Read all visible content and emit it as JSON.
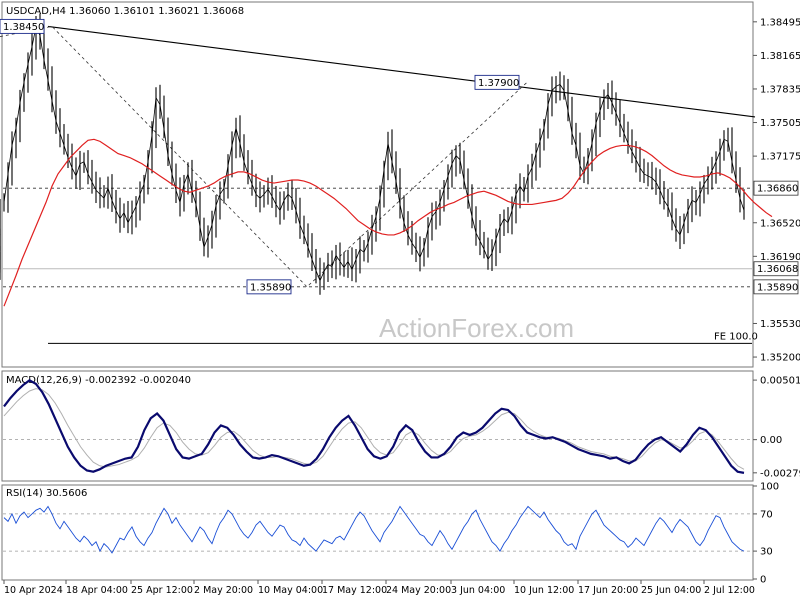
{
  "chart_data": {
    "type": "line",
    "title": "USDCAD,H4  1.36060 1.36101 1.36021 1.36068",
    "watermark": "ActionForex.com",
    "price_panel": {
      "ylim": [
        1.35112,
        1.3868
      ],
      "y_ticks": [
        "1.38495",
        "1.38165",
        "1.37835",
        "1.37505",
        "1.37175",
        "1.36520",
        "1.36190",
        "1.35530",
        "1.35200"
      ],
      "current_price": "1.36068",
      "level_labels": [
        "1.36860",
        "1.35890"
      ],
      "levels": [
        1.3686,
        1.3589
      ],
      "fe_label": "FE 100.0",
      "fe_level": 1.35335,
      "swing_labels": [
        "1.38450",
        "1.35890",
        "1.37900"
      ],
      "trendline": [
        {
          "bar": 48,
          "value": 1.3845
        },
        {
          "bar": 755,
          "value": 1.3756
        }
      ],
      "swing_path": [
        {
          "bar": 0,
          "value": 1.3835
        },
        {
          "bar": 52,
          "value": 1.3845
        },
        {
          "bar": 307,
          "value": 1.3589
        },
        {
          "bar": 527,
          "value": 1.379
        }
      ],
      "close": [
        1.3672,
        1.37,
        1.3728,
        1.3745,
        1.377,
        1.379,
        1.3808,
        1.3825,
        1.3845,
        1.3836,
        1.3812,
        1.3792,
        1.3772,
        1.3752,
        1.374,
        1.3728,
        1.3716,
        1.3706,
        1.3698,
        1.371,
        1.3712,
        1.37,
        1.3692,
        1.3684,
        1.368,
        1.3676,
        1.3686,
        1.3674,
        1.3664,
        1.3656,
        1.3662,
        1.3652,
        1.366,
        1.3668,
        1.368,
        1.369,
        1.3712,
        1.3738,
        1.3775,
        1.3768,
        1.3744,
        1.3718,
        1.37,
        1.3684,
        1.3672,
        1.369,
        1.37,
        1.3683,
        1.367,
        1.3648,
        1.3628,
        1.3638,
        1.365,
        1.3669,
        1.368,
        1.3686,
        1.3708,
        1.3728,
        1.3745,
        1.373,
        1.3712,
        1.37,
        1.369,
        1.368,
        1.3676,
        1.368,
        1.3685,
        1.3678,
        1.367,
        1.3664,
        1.3674,
        1.368,
        1.3676,
        1.3664,
        1.365,
        1.364,
        1.3628,
        1.3616,
        1.3605,
        1.3595,
        1.3604,
        1.3611,
        1.3609,
        1.362,
        1.3614,
        1.3608,
        1.3614,
        1.3606,
        1.3616,
        1.3626,
        1.3623,
        1.3632,
        1.3646,
        1.3658,
        1.3676,
        1.3704,
        1.373,
        1.3712,
        1.3693,
        1.367,
        1.3652,
        1.364,
        1.3632,
        1.3626,
        1.3618,
        1.3628,
        1.3646,
        1.3658,
        1.3663,
        1.3672,
        1.3685,
        1.3698,
        1.371,
        1.3718,
        1.3714,
        1.3694,
        1.3676,
        1.3658,
        1.3642,
        1.3634,
        1.3626,
        1.3616,
        1.3622,
        1.3636,
        1.3648,
        1.3656,
        1.3652,
        1.3664,
        1.368,
        1.3688,
        1.3682,
        1.3698,
        1.3706,
        1.372,
        1.3732,
        1.3745,
        1.3768,
        1.3782,
        1.3786,
        1.3788,
        1.3782,
        1.3762,
        1.374,
        1.3728,
        1.3708,
        1.37,
        1.3714,
        1.373,
        1.375,
        1.3762,
        1.3774,
        1.3778,
        1.377,
        1.376,
        1.375,
        1.374,
        1.373,
        1.3722,
        1.3714,
        1.3706,
        1.37,
        1.3698,
        1.3696,
        1.3692,
        1.3684,
        1.3674,
        1.3668,
        1.3656,
        1.3646,
        1.364,
        1.3652,
        1.3664,
        1.3674,
        1.3672,
        1.368,
        1.369,
        1.3696,
        1.3703,
        1.3712,
        1.3722,
        1.3734,
        1.3732,
        1.3712,
        1.3694,
        1.3676,
        1.3664,
        1.365,
        1.3636,
        1.3628,
        1.362,
        1.3612,
        1.3606
      ],
      "close_x": [
        4,
        8,
        12,
        16,
        20,
        24,
        28,
        32,
        36,
        40,
        44,
        48,
        52,
        56,
        60,
        64,
        68,
        72,
        76,
        80,
        84,
        88,
        92,
        96,
        100,
        104,
        108,
        112,
        116,
        120,
        124,
        128,
        132,
        136,
        140,
        144,
        148,
        152,
        156,
        160,
        164,
        168,
        172,
        176,
        180,
        184,
        188,
        192,
        196,
        200,
        204,
        208,
        212,
        216,
        220,
        224,
        228,
        232,
        236,
        240,
        244,
        248,
        252,
        256,
        260,
        264,
        268,
        272,
        276,
        280,
        284,
        288,
        292,
        296,
        300,
        304,
        308,
        312,
        316,
        320,
        324,
        328,
        332,
        336,
        340,
        344,
        348,
        352,
        356,
        360,
        364,
        368,
        372,
        376,
        380,
        384,
        388,
        392,
        396,
        400,
        404,
        408,
        412,
        416,
        420,
        424,
        428,
        432,
        436,
        440,
        444,
        448,
        452,
        456,
        460,
        464,
        468,
        472,
        476,
        480,
        484,
        488,
        492,
        496,
        500,
        504,
        508,
        512,
        516,
        520,
        524,
        528,
        532,
        536,
        540,
        544,
        548,
        552,
        556,
        560,
        564,
        568,
        572,
        576,
        580,
        584,
        588,
        592,
        596,
        600,
        604,
        608,
        612,
        616,
        620,
        624,
        628,
        632,
        636,
        640,
        644,
        648,
        652,
        656,
        660,
        664,
        668,
        672,
        676,
        680,
        684,
        688,
        692,
        696,
        700,
        704,
        708,
        712,
        716,
        720,
        724,
        728,
        732,
        736,
        740,
        744
      ],
      "ma": [
        1.357,
        1.3585,
        1.36,
        1.3616,
        1.363,
        1.3644,
        1.3658,
        1.3672,
        1.3688,
        1.37,
        1.3708,
        1.3716,
        1.3722,
        1.3728,
        1.3733,
        1.3734,
        1.3732,
        1.3728,
        1.3724,
        1.372,
        1.3718,
        1.3716,
        1.3713,
        1.371,
        1.3706,
        1.3702,
        1.3698,
        1.3694,
        1.369,
        1.3686,
        1.3683,
        1.3682,
        1.3684,
        1.3686,
        1.3688,
        1.3691,
        1.3695,
        1.3698,
        1.37,
        1.3702,
        1.3702,
        1.37,
        1.3697,
        1.3694,
        1.3692,
        1.3691,
        1.3692,
        1.3693,
        1.3694,
        1.3694,
        1.3693,
        1.3691,
        1.3688,
        1.3684,
        1.368,
        1.3676,
        1.3671,
        1.3666,
        1.366,
        1.3654,
        1.365,
        1.3646,
        1.3643,
        1.3641,
        1.364,
        1.364,
        1.3642,
        1.3645,
        1.3649,
        1.3654,
        1.3658,
        1.3662,
        1.3665,
        1.3667,
        1.367,
        1.3672,
        1.3675,
        1.3678,
        1.368,
        1.3682,
        1.3683,
        1.3681,
        1.3679,
        1.3676,
        1.3673,
        1.3671,
        1.367,
        1.367,
        1.367,
        1.3671,
        1.3672,
        1.3673,
        1.3674,
        1.3676,
        1.3681,
        1.3688,
        1.3697,
        1.3705,
        1.3712,
        1.3718,
        1.3722,
        1.3725,
        1.3727,
        1.3728,
        1.3728,
        1.3727,
        1.3725,
        1.3722,
        1.3718,
        1.3713,
        1.3708,
        1.3704,
        1.3701,
        1.3699,
        1.3698,
        1.3697,
        1.3697,
        1.3698,
        1.37,
        1.3701,
        1.3699,
        1.3696,
        1.3691,
        1.3685,
        1.3678,
        1.3672,
        1.3667,
        1.3662,
        1.3658
      ],
      "ma_x": [
        4,
        10,
        16,
        22,
        28,
        34,
        40,
        46,
        52,
        58,
        64,
        70,
        76,
        82,
        88,
        94,
        100,
        106,
        112,
        118,
        124,
        130,
        136,
        142,
        148,
        154,
        160,
        166,
        172,
        178,
        184,
        190,
        196,
        202,
        208,
        214,
        220,
        226,
        232,
        238,
        244,
        250,
        256,
        262,
        268,
        274,
        280,
        286,
        292,
        298,
        304,
        310,
        316,
        322,
        328,
        334,
        340,
        346,
        352,
        358,
        364,
        370,
        376,
        382,
        388,
        394,
        400,
        406,
        412,
        418,
        424,
        430,
        436,
        442,
        448,
        454,
        460,
        466,
        472,
        478,
        484,
        490,
        496,
        502,
        508,
        514,
        520,
        526,
        532,
        538,
        544,
        550,
        556,
        562,
        568,
        574,
        580,
        586,
        592,
        598,
        604,
        610,
        616,
        622,
        628,
        634,
        640,
        646,
        652,
        658,
        664,
        670,
        676,
        682,
        688,
        694,
        700,
        706,
        712,
        718,
        724,
        730,
        736,
        742,
        748,
        754,
        760,
        766,
        772
      ]
    },
    "macd_panel": {
      "label": "MACD(12,26,9) -0.002392 -0.002040",
      "ylim": [
        -0.0034,
        0.0057
      ],
      "y_ticks": [
        "0.005018",
        "0.00",
        "-0.002795"
      ],
      "macd": [
        0.0028,
        0.0035,
        0.0041,
        0.0046,
        0.005,
        0.0047,
        0.004,
        0.003,
        0.0018,
        0.0006,
        -0.0006,
        -0.0015,
        -0.0022,
        -0.0026,
        -0.0027,
        -0.0025,
        -0.0022,
        -0.002,
        -0.0018,
        -0.0016,
        -0.0015,
        -0.0006,
        0.0008,
        0.0018,
        0.0022,
        0.0016,
        0.0004,
        -0.0008,
        -0.0015,
        -0.0016,
        -0.0014,
        -0.0012,
        -0.0004,
        0.0006,
        0.0012,
        0.001,
        0.0004,
        -0.0004,
        -0.001,
        -0.0015,
        -0.0016,
        -0.0015,
        -0.0013,
        -0.0014,
        -0.0016,
        -0.0018,
        -0.002,
        -0.0022,
        -0.0021,
        -0.0016,
        -0.0008,
        0.0002,
        0.001,
        0.0016,
        0.002,
        0.0012,
        0.0002,
        -0.0008,
        -0.0014,
        -0.0016,
        -0.0014,
        -0.0006,
        0.0006,
        0.0012,
        0.0008,
        -0.0002,
        -0.001,
        -0.0015,
        -0.0015,
        -0.0012,
        -0.0006,
        0.0002,
        0.0006,
        0.0004,
        0.0006,
        0.001,
        0.0016,
        0.0022,
        0.0026,
        0.0025,
        0.002,
        0.0012,
        0.0006,
        0.0004,
        0.0002,
        0.0001,
        0.0002,
        0.0,
        -0.0002,
        -0.0005,
        -0.0008,
        -0.001,
        -0.0012,
        -0.0013,
        -0.0014,
        -0.0016,
        -0.0015,
        -0.0018,
        -0.002,
        -0.0017,
        -0.001,
        -0.0004,
        0.0,
        0.0002,
        -0.0002,
        -0.0006,
        -0.001,
        -0.0004,
        0.0004,
        0.001,
        0.0008,
        0.0002,
        -0.0006,
        -0.0014,
        -0.0022,
        -0.0027,
        -0.0028
      ],
      "signal": [
        0.002,
        0.0026,
        0.0032,
        0.0037,
        0.0041,
        0.0043,
        0.0042,
        0.0038,
        0.0031,
        0.0022,
        0.0012,
        0.0003,
        -0.0006,
        -0.0013,
        -0.0019,
        -0.0022,
        -0.0023,
        -0.0022,
        -0.0021,
        -0.0019,
        -0.0017,
        -0.0014,
        -0.0007,
        0.0002,
        0.001,
        0.0014,
        0.0012,
        0.0006,
        -0.0002,
        -0.0008,
        -0.0012,
        -0.0013,
        -0.0011,
        -0.0005,
        0.0002,
        0.0006,
        0.0007,
        0.0003,
        -0.0003,
        -0.0009,
        -0.0013,
        -0.0015,
        -0.0015,
        -0.0014,
        -0.0015,
        -0.0016,
        -0.0018,
        -0.002,
        -0.0021,
        -0.0019,
        -0.0014,
        -0.0006,
        0.0002,
        0.0009,
        0.0014,
        0.0015,
        0.001,
        0.0002,
        -0.0006,
        -0.0011,
        -0.0013,
        -0.0011,
        -0.0004,
        0.0004,
        0.0007,
        0.0004,
        -0.0003,
        -0.0009,
        -0.0013,
        -0.0013,
        -0.001,
        -0.0004,
        0.0001,
        0.0003,
        0.0004,
        0.0007,
        0.0011,
        0.0016,
        0.0021,
        0.0023,
        0.0022,
        0.0017,
        0.0011,
        0.0007,
        0.0004,
        0.0002,
        0.0002,
        0.0001,
        -0.0001,
        -0.0003,
        -0.0006,
        -0.0008,
        -0.001,
        -0.0011,
        -0.0012,
        -0.0014,
        -0.0015,
        -0.0016,
        -0.0018,
        -0.0018,
        -0.0014,
        -0.0008,
        -0.0003,
        0.0,
        -0.0001,
        -0.0004,
        -0.0007,
        -0.0006,
        -0.0001,
        0.0005,
        0.0007,
        0.0004,
        -0.0002,
        -0.0009,
        -0.0016,
        -0.0022,
        -0.0025
      ]
    },
    "rsi_panel": {
      "label": "RSI(14) 30.5606",
      "ylim": [
        0,
        100
      ],
      "y_ticks": [
        "100",
        "70",
        "30",
        "0"
      ],
      "levels": [
        70,
        30
      ],
      "rsi": [
        66,
        62,
        70,
        60,
        68,
        72,
        66,
        70,
        74,
        76,
        72,
        78,
        70,
        60,
        54,
        62,
        56,
        50,
        44,
        40,
        46,
        42,
        36,
        40,
        30,
        38,
        34,
        28,
        36,
        44,
        42,
        50,
        56,
        46,
        40,
        36,
        44,
        50,
        60,
        68,
        76,
        70,
        60,
        66,
        58,
        52,
        46,
        40,
        48,
        56,
        52,
        44,
        38,
        50,
        60,
        66,
        74,
        70,
        62,
        54,
        48,
        44,
        50,
        58,
        62,
        56,
        50,
        46,
        52,
        58,
        56,
        48,
        42,
        40,
        36,
        44,
        38,
        34,
        30,
        36,
        42,
        40,
        38,
        44,
        46,
        42,
        50,
        58,
        66,
        72,
        68,
        60,
        52,
        46,
        40,
        50,
        56,
        62,
        70,
        78,
        72,
        66,
        60,
        54,
        48,
        46,
        40,
        36,
        44,
        52,
        46,
        38,
        32,
        40,
        48,
        56,
        62,
        70,
        74,
        64,
        56,
        48,
        40,
        36,
        30,
        38,
        44,
        52,
        58,
        66,
        72,
        78,
        74,
        70,
        66,
        72,
        64,
        58,
        52,
        48,
        40,
        36,
        38,
        32,
        46,
        54,
        62,
        70,
        74,
        66,
        58,
        54,
        50,
        46,
        42,
        40,
        34,
        38,
        44,
        40,
        36,
        44,
        52,
        60,
        66,
        62,
        56,
        50,
        58,
        64,
        60,
        56,
        48,
        40,
        36,
        42,
        52,
        60,
        68,
        66,
        56,
        48,
        40,
        36,
        32,
        30
      ],
      "rsi_x_step": 4
    },
    "x_labels": [
      "10 Apr 2024",
      "18 Apr 04:00",
      "25 Apr 12:00",
      "2 May 20:00",
      "10 May 04:00",
      "17 May 12:00",
      "24 May 20:00",
      "3 Jun 04:00",
      "10 Jun 12:00",
      "17 Jun 20:00",
      "25 Jun 04:00",
      "2 Jul 12:00"
    ],
    "colors": {
      "price": "#000000",
      "ma": "#e02020",
      "macd": "#0a0a6e",
      "signal": "#b0b0b0",
      "rsi": "#1a4fd6",
      "grid": "#9a9a9a"
    }
  }
}
